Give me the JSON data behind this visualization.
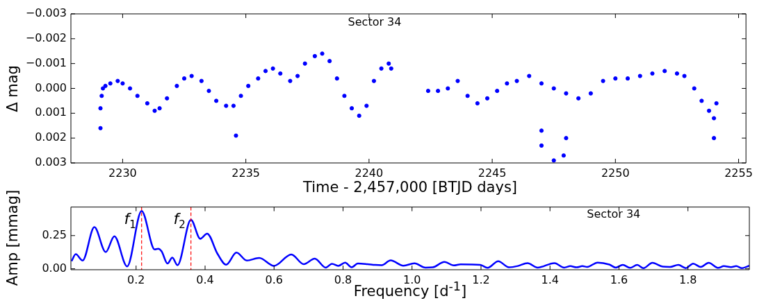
{
  "chart_data": [
    {
      "type": "scatter",
      "xlabel": "Time - 2,457,000 [BTJD days]",
      "ylabel": "Δ mag",
      "annotations": [
        "Sector 34"
      ],
      "color": "#0000ff",
      "marker": "circle",
      "grid": false,
      "legend": false,
      "xlim": [
        2227.9,
        2255.3
      ],
      "xticks": [
        2230,
        2235,
        2240,
        2245,
        2250,
        2255
      ],
      "ylim": [
        0.003,
        -0.003
      ],
      "yticks": [
        {
          "value": -0.003,
          "label": "−0.003"
        },
        {
          "value": -0.002,
          "label": "−0.002"
        },
        {
          "value": -0.001,
          "label": "−0.001"
        },
        {
          "value": 0,
          "label": "0.000"
        },
        {
          "value": 0.001,
          "label": "0.001"
        },
        {
          "value": 0.002,
          "label": "0.002"
        },
        {
          "value": 0.003,
          "label": "0.003"
        }
      ],
      "x": [
        2229.1,
        2229.1,
        2229.15,
        2229.2,
        2229.3,
        2229.5,
        2229.8,
        2230.0,
        2230.3,
        2230.6,
        2231.0,
        2231.3,
        2231.5,
        2231.8,
        2232.2,
        2232.5,
        2232.8,
        2233.2,
        2233.5,
        2233.8,
        2234.2,
        2234.5,
        2234.6,
        2234.8,
        2235.1,
        2235.5,
        2235.8,
        2236.1,
        2236.4,
        2236.8,
        2237.1,
        2237.4,
        2237.8,
        2238.1,
        2238.4,
        2238.7,
        2239.0,
        2239.3,
        2239.6,
        2239.9,
        2240.2,
        2240.5,
        2240.8,
        2240.9,
        2242.4,
        2242.8,
        2243.2,
        2243.6,
        2244.0,
        2244.4,
        2244.8,
        2245.2,
        2245.6,
        2246.0,
        2246.5,
        2247.0,
        2247.0,
        2247.0,
        2247.5,
        2247.5,
        2247.9,
        2248.0,
        2248.0,
        2248.5,
        2249.0,
        2249.5,
        2250.0,
        2250.5,
        2251.0,
        2251.5,
        2252.0,
        2252.5,
        2252.8,
        2253.2,
        2253.5,
        2253.8,
        2254.0,
        2254.0,
        2254.1
      ],
      "values": [
        0.0016,
        0.0008,
        0.0003,
        0.0,
        -0.0001,
        -0.0002,
        -0.0003,
        -0.0002,
        0.0,
        0.0003,
        0.0006,
        0.0009,
        0.0008,
        0.0004,
        -0.0001,
        -0.0004,
        -0.0005,
        -0.0003,
        0.0001,
        0.0005,
        0.0007,
        0.0007,
        0.0019,
        0.0003,
        -0.0001,
        -0.0004,
        -0.0007,
        -0.0008,
        -0.0006,
        -0.0003,
        -0.0005,
        -0.001,
        -0.0013,
        -0.0014,
        -0.0011,
        -0.0004,
        0.0003,
        0.0008,
        0.0011,
        0.0007,
        -0.0003,
        -0.0008,
        -0.001,
        -0.0008,
        0.0001,
        0.0001,
        0.0,
        -0.0003,
        0.0003,
        0.0006,
        0.0004,
        0.0001,
        -0.0002,
        -0.0003,
        -0.0005,
        -0.0002,
        0.0017,
        0.0023,
        0.0,
        0.0029,
        0.0027,
        0.0002,
        0.002,
        0.0004,
        0.0002,
        -0.0003,
        -0.0004,
        -0.0004,
        -0.0005,
        -0.0006,
        -0.0007,
        -0.0006,
        -0.0005,
        0.0,
        0.0005,
        0.0009,
        0.0012,
        0.002,
        0.0006
      ]
    },
    {
      "type": "line",
      "xlabel": "Frequency [d$^{-1}$]",
      "ylabel": "Amp [mmag]",
      "annotations": [
        "Sector 34"
      ],
      "color": "#0000ff",
      "marker": "none",
      "grid": false,
      "legend": false,
      "xlim": [
        0.011,
        1.978
      ],
      "xticks": [
        0.2,
        0.4,
        0.6,
        0.8,
        {
          "value": 1.0,
          "label": "1.0"
        },
        1.2,
        1.4,
        1.6,
        1.8
      ],
      "ylim": [
        -0.007,
        0.465
      ],
      "yticks": [
        {
          "value": 0,
          "label": "0.00"
        },
        0.25
      ],
      "ref_lines": [
        {
          "axis": "x",
          "value": 0.216,
          "label": "f$_{1}$",
          "color": "#ff0000",
          "line_style": "dashed"
        },
        {
          "axis": "x",
          "value": 0.359,
          "label": "f$_{2}$",
          "color": "#ff0000",
          "line_style": "dashed"
        }
      ],
      "x": [
        0.013,
        0.025,
        0.045,
        0.079,
        0.112,
        0.137,
        0.174,
        0.216,
        0.254,
        0.264,
        0.274,
        0.291,
        0.305,
        0.32,
        0.359,
        0.386,
        0.406,
        0.436,
        0.461,
        0.491,
        0.521,
        0.557,
        0.6,
        0.65,
        0.686,
        0.718,
        0.75,
        0.768,
        0.786,
        0.806,
        0.825,
        0.843,
        0.871,
        0.893,
        0.912,
        0.938,
        0.975,
        1.007,
        1.039,
        1.06,
        1.094,
        1.121,
        1.141,
        1.198,
        1.219,
        1.25,
        1.281,
        1.307,
        1.335,
        1.364,
        1.413,
        1.441,
        1.459,
        1.477,
        1.494,
        1.508,
        1.538,
        1.572,
        1.591,
        1.611,
        1.632,
        1.653,
        1.671,
        1.697,
        1.727,
        1.748,
        1.772,
        1.794,
        1.815,
        1.837,
        1.86,
        1.888,
        1.904,
        1.925,
        1.94,
        1.957,
        1.978
      ],
      "values": [
        0.058,
        0.11,
        0.062,
        0.314,
        0.126,
        0.245,
        0.018,
        0.436,
        0.146,
        0.151,
        0.131,
        0.04,
        0.084,
        0.027,
        0.369,
        0.226,
        0.265,
        0.113,
        0.031,
        0.122,
        0.062,
        0.082,
        0.022,
        0.108,
        0.035,
        0.077,
        0.009,
        0.038,
        0.022,
        0.046,
        0.011,
        0.04,
        0.035,
        0.029,
        0.027,
        0.063,
        0.023,
        0.041,
        0.009,
        0.011,
        0.052,
        0.025,
        0.034,
        0.029,
        0.007,
        0.057,
        0.011,
        0.021,
        0.043,
        0.009,
        0.043,
        0.009,
        0.02,
        0.011,
        0.02,
        0.014,
        0.047,
        0.032,
        0.009,
        0.03,
        0.007,
        0.029,
        0.005,
        0.045,
        0.016,
        0.014,
        0.029,
        0.005,
        0.039,
        0.014,
        0.045,
        0.007,
        0.02,
        0.013,
        0.02,
        0.005,
        0.023
      ]
    }
  ]
}
